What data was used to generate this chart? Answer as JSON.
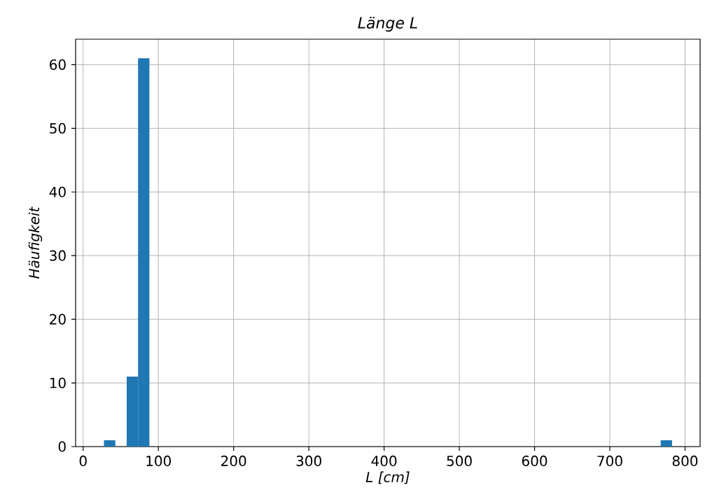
{
  "chart_data": {
    "type": "histogram",
    "title": "Länge L",
    "xlabel": "L [cm]",
    "ylabel": "Häufigkeit",
    "color": "#1f77b4",
    "bins": [
      27.7,
      42.8,
      57.9,
      73.0,
      88.1,
      103.2,
      118.3,
      133.4,
      148.5,
      163.6,
      178.7,
      193.8,
      208.9,
      224.0,
      239.1,
      254.2,
      269.3,
      284.4,
      299.5,
      314.6,
      329.7,
      344.8,
      359.9,
      375.0,
      390.1,
      405.2,
      420.3,
      435.4,
      450.5,
      465.6,
      480.7,
      495.8,
      510.9,
      526.0,
      541.1,
      556.2,
      571.3,
      586.4,
      601.5,
      616.6,
      631.7,
      646.8,
      661.9,
      677.0,
      692.1,
      707.2,
      722.3,
      737.4,
      752.5,
      767.6,
      782.7
    ],
    "values": [
      1,
      0,
      11,
      61,
      0,
      0,
      0,
      0,
      0,
      0,
      0,
      0,
      0,
      0,
      0,
      0,
      0,
      0,
      0,
      0,
      0,
      0,
      0,
      0,
      0,
      0,
      0,
      0,
      0,
      0,
      0,
      0,
      0,
      0,
      0,
      0,
      0,
      0,
      0,
      0,
      0,
      0,
      0,
      0,
      0,
      0,
      0,
      0,
      0,
      1
    ],
    "xlim": [
      -10,
      820
    ],
    "ylim": [
      0,
      64
    ],
    "xticks": [
      0,
      100,
      200,
      300,
      400,
      500,
      600,
      700,
      800
    ],
    "yticks": [
      0,
      10,
      20,
      30,
      40,
      50,
      60
    ],
    "grid": true
  }
}
